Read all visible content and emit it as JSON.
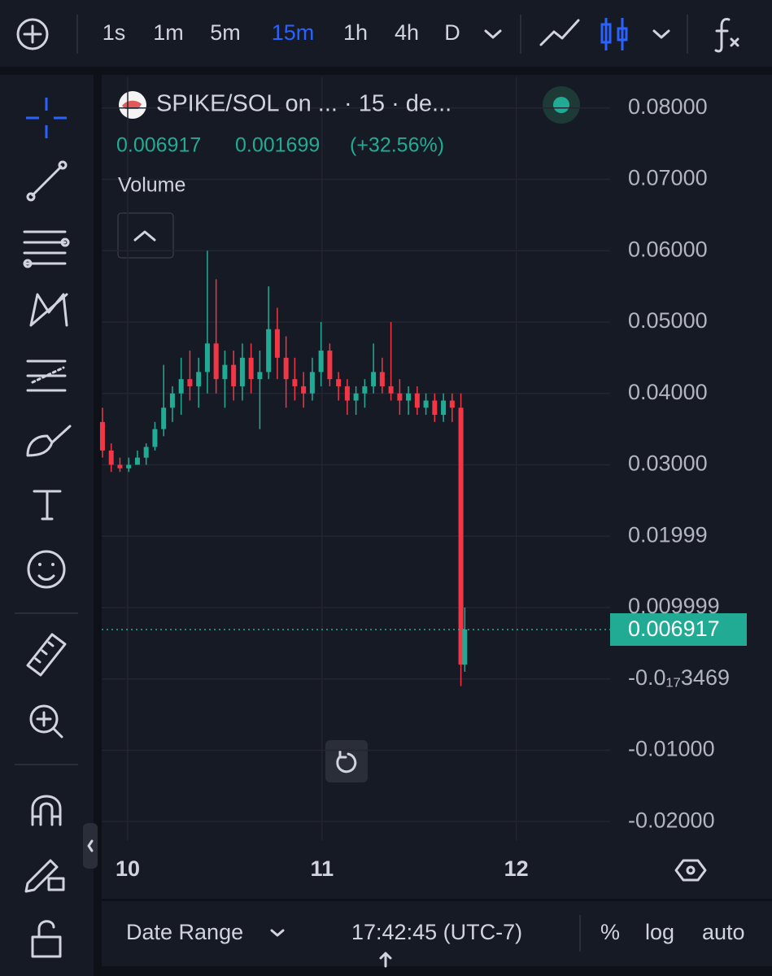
{
  "toolbar": {
    "intervals": [
      "1s",
      "1m",
      "5m",
      "15m",
      "1h",
      "4h",
      "D"
    ],
    "active": "15m"
  },
  "legend": {
    "title": "SPIKE/SOL on ...  · 15 · de...",
    "last": "0.006917",
    "change": "0.001699",
    "change_pct": "(+32.56%)",
    "volume": "Volume"
  },
  "chart_data": {
    "type": "candlestick",
    "x": [
      9.87,
      9.915,
      9.96,
      10.005,
      10.05,
      10.095,
      10.14,
      10.185,
      10.23,
      10.275,
      10.32,
      10.365,
      10.41,
      10.455,
      10.5,
      10.545,
      10.59,
      10.635,
      10.68,
      10.725,
      10.77,
      10.815,
      10.86,
      10.905,
      10.95,
      10.995,
      11.04,
      11.085,
      11.13,
      11.175,
      11.22,
      11.265,
      11.31,
      11.355,
      11.4,
      11.445,
      11.49,
      11.535,
      11.58,
      11.625,
      11.67,
      11.715,
      11.735
    ],
    "open": [
      0.036,
      0.032,
      0.03,
      0.0295,
      0.03,
      0.031,
      0.0325,
      0.035,
      0.038,
      0.04,
      0.042,
      0.041,
      0.043,
      0.047,
      0.042,
      0.044,
      0.041,
      0.045,
      0.042,
      0.043,
      0.049,
      0.045,
      0.042,
      0.041,
      0.04,
      0.043,
      0.046,
      0.042,
      0.041,
      0.039,
      0.04,
      0.041,
      0.043,
      0.041,
      0.04,
      0.039,
      0.04,
      0.038,
      0.039,
      0.037,
      0.039,
      0.038,
      0.002
    ],
    "high": [
      0.038,
      0.033,
      0.031,
      0.031,
      0.032,
      0.033,
      0.036,
      0.044,
      0.041,
      0.045,
      0.046,
      0.045,
      0.06,
      0.056,
      0.046,
      0.046,
      0.047,
      0.047,
      0.046,
      0.055,
      0.052,
      0.048,
      0.045,
      0.043,
      0.045,
      0.05,
      0.047,
      0.043,
      0.042,
      0.041,
      0.042,
      0.047,
      0.045,
      0.05,
      0.042,
      0.041,
      0.041,
      0.04,
      0.04,
      0.04,
      0.04,
      0.04,
      0.01
    ],
    "low": [
      0.031,
      0.029,
      0.029,
      0.029,
      0.03,
      0.03,
      0.032,
      0.034,
      0.036,
      0.037,
      0.039,
      0.038,
      0.04,
      0.04,
      0.038,
      0.039,
      0.039,
      0.04,
      0.035,
      0.042,
      0.042,
      0.038,
      0.039,
      0.038,
      0.039,
      0.041,
      0.041,
      0.039,
      0.037,
      0.037,
      0.038,
      0.04,
      0.04,
      0.039,
      0.037,
      0.037,
      0.037,
      0.037,
      0.036,
      0.036,
      0.036,
      -0.001,
      0.001
    ],
    "close": [
      0.032,
      0.03,
      0.0295,
      0.03,
      0.031,
      0.0325,
      0.035,
      0.038,
      0.04,
      0.042,
      0.041,
      0.043,
      0.047,
      0.042,
      0.044,
      0.041,
      0.045,
      0.042,
      0.043,
      0.049,
      0.045,
      0.042,
      0.041,
      0.04,
      0.043,
      0.046,
      0.042,
      0.041,
      0.039,
      0.04,
      0.041,
      0.043,
      0.041,
      0.04,
      0.039,
      0.04,
      0.038,
      0.039,
      0.037,
      0.039,
      0.038,
      0.002,
      0.006917
    ],
    "up_color": "#22ab94",
    "down_color": "#f23645",
    "last_price": 0.006917,
    "xlim": [
      9.866,
      12.483
    ],
    "xticks": [
      10,
      11,
      12
    ],
    "ylim": [
      -0.0226,
      0.0843
    ],
    "yticks": [
      {
        "value": 0.08,
        "label": "0.08000"
      },
      {
        "value": 0.07,
        "label": "0.07000"
      },
      {
        "value": 0.06,
        "label": "0.06000"
      },
      {
        "value": 0.05,
        "label": "0.05000"
      },
      {
        "value": 0.04,
        "label": "0.04000"
      },
      {
        "value": 0.03,
        "label": "0.03000"
      },
      0.01999,
      0.009999,
      {
        "value": -3.469e-18,
        "label": "-0.0₁₇3469"
      },
      {
        "value": -0.01,
        "label": "-0.01000"
      },
      {
        "value": -0.02,
        "label": "-0.02000"
      }
    ],
    "grid": true
  },
  "bottom_bar": {
    "range": "Date Range",
    "time": "17:42:45 (UTC-7)",
    "percent": "%",
    "log": "log",
    "auto": "auto"
  }
}
